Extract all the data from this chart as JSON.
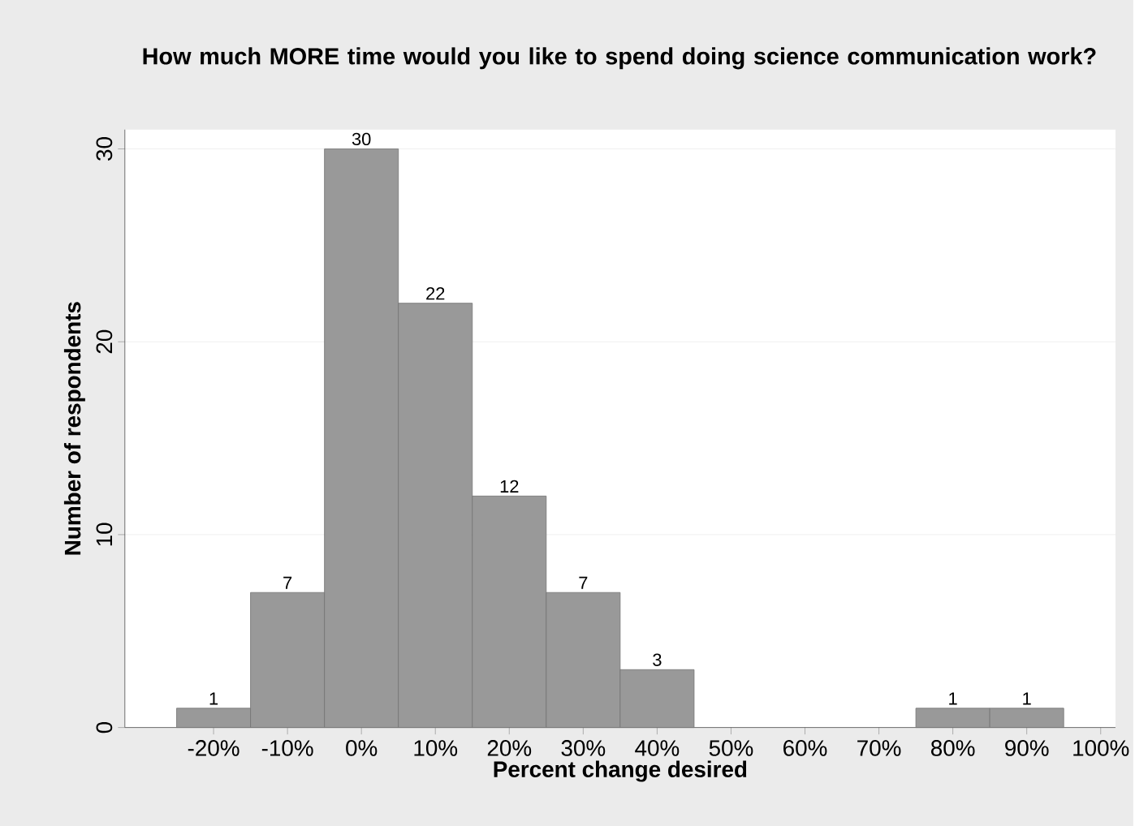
{
  "chart_data": {
    "type": "histogram",
    "title": "How much MORE time would you like to spend doing science communication work?",
    "xlabel": "Percent change desired",
    "ylabel": "Number of respondents",
    "bins": [
      -25,
      -15,
      -5,
      5,
      15,
      25,
      35,
      45,
      55,
      65,
      75,
      85,
      95
    ],
    "values": [
      1,
      7,
      30,
      22,
      12,
      7,
      3,
      0,
      0,
      0,
      1,
      1
    ],
    "value_labels": [
      "1",
      "7",
      "30",
      "22",
      "12",
      "7",
      "3",
      null,
      null,
      null,
      "1",
      "1"
    ],
    "color": "#999999",
    "xlim": [
      -32,
      102
    ],
    "ylim": [
      0,
      31
    ],
    "xticks": [
      {
        "value": -20,
        "label": "-20%"
      },
      {
        "value": -10,
        "label": "-10%"
      },
      {
        "value": 0,
        "label": "0%"
      },
      {
        "value": 10,
        "label": "10%"
      },
      {
        "value": 20,
        "label": "20%"
      },
      {
        "value": 30,
        "label": "30%"
      },
      {
        "value": 40,
        "label": "40%"
      },
      {
        "value": 50,
        "label": "50%"
      },
      {
        "value": 60,
        "label": "60%"
      },
      {
        "value": 70,
        "label": "70%"
      },
      {
        "value": 80,
        "label": "80%"
      },
      {
        "value": 90,
        "label": "90%"
      },
      {
        "value": 100,
        "label": "100%"
      }
    ],
    "yticks": [
      0,
      10,
      20,
      30
    ],
    "grid": "y"
  }
}
